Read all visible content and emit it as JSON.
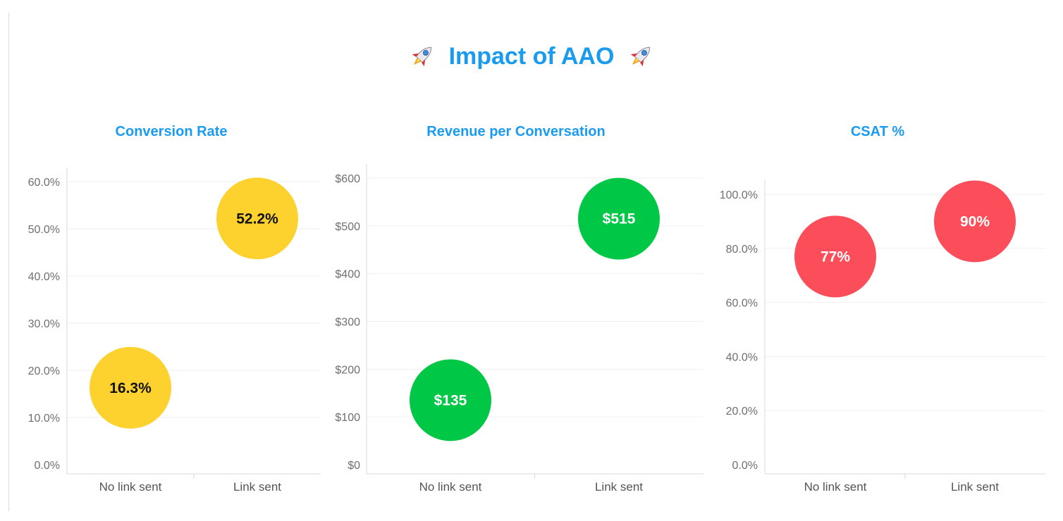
{
  "title": "Impact of AAO",
  "title_icon": "rocket-icon",
  "colors": {
    "title": "#1a9bf0",
    "conversion": "#fdd22e",
    "revenue": "#00c846",
    "csat": "#fc4e5a"
  },
  "chart_data": [
    {
      "type": "scatter",
      "title": "Conversion Rate",
      "categories": [
        "No link sent",
        "Link sent"
      ],
      "values": [
        16.3,
        52.2
      ],
      "data_labels": [
        "16.3%",
        "52.2%"
      ],
      "ylim": [
        0,
        64
      ],
      "yticks": [
        0,
        10,
        20,
        30,
        40,
        50,
        60
      ],
      "ytick_labels": [
        "0.0%",
        "10.0%",
        "20.0%",
        "30.0%",
        "40.0%",
        "50.0%",
        "60.0%"
      ],
      "color": "#fdd22e",
      "label_color": "#111111",
      "grid": true
    },
    {
      "type": "scatter",
      "title": "Revenue per Conversation",
      "categories": [
        "No link sent",
        "Link sent"
      ],
      "values": [
        135,
        515
      ],
      "data_labels": [
        "$135",
        "$515"
      ],
      "ylim": [
        0,
        620
      ],
      "yticks": [
        0,
        100,
        200,
        300,
        400,
        500,
        600
      ],
      "ytick_labels": [
        "$0",
        "$100",
        "$200",
        "$300",
        "$400",
        "$500",
        "$600"
      ],
      "color": "#00c846",
      "label_color": "#ffffff",
      "grid": true
    },
    {
      "type": "scatter",
      "title": "CSAT %",
      "categories": [
        "No link sent",
        "Link sent"
      ],
      "values": [
        77,
        90
      ],
      "data_labels": [
        "77%",
        "90%"
      ],
      "ylim": [
        0,
        110
      ],
      "yticks": [
        0,
        20,
        40,
        60,
        80,
        100
      ],
      "ytick_labels": [
        "0.0%",
        "20.0%",
        "40.0%",
        "60.0%",
        "80.0%",
        "100.0%"
      ],
      "color": "#fc4e5a",
      "label_color": "#ffffff",
      "grid": true
    }
  ]
}
